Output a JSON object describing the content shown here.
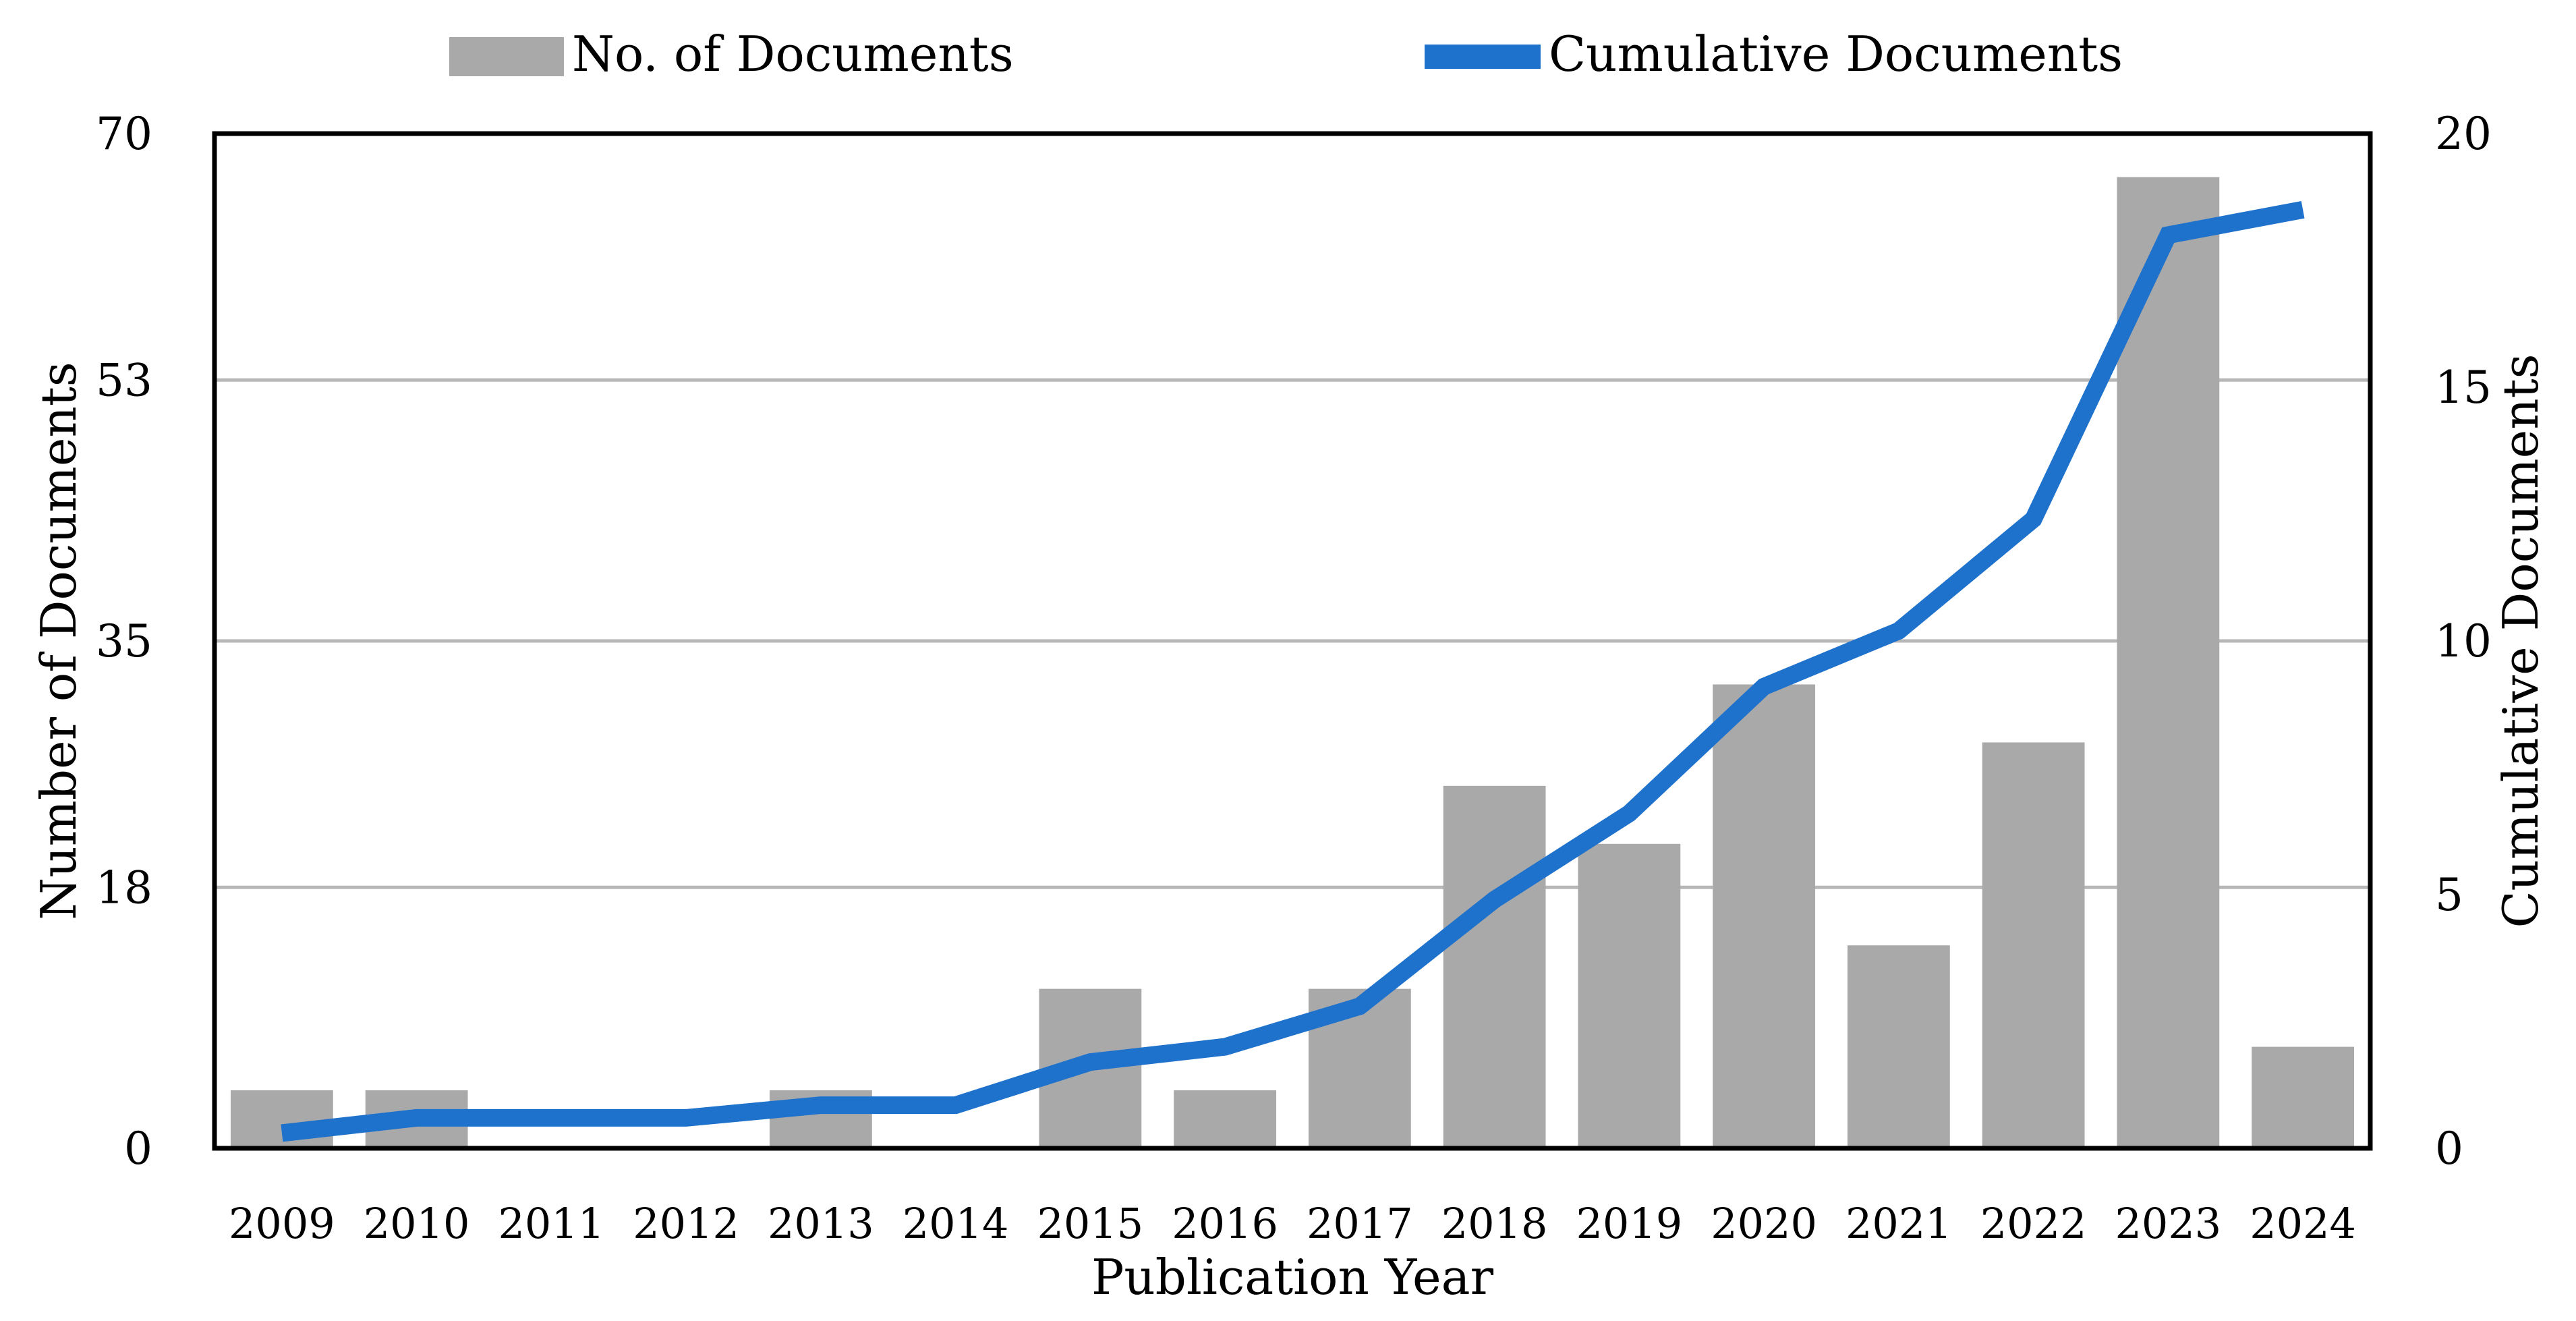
{
  "chart_data": {
    "type": "bar",
    "categories": [
      "2009",
      "2010",
      "2011",
      "2012",
      "2013",
      "2014",
      "2015",
      "2016",
      "2017",
      "2018",
      "2019",
      "2020",
      "2021",
      "2022",
      "2023",
      "2024"
    ],
    "series": [
      {
        "name": "No. of Documents",
        "type": "bar",
        "axis": "left",
        "color": "#a9a9a9",
        "values": [
          4,
          4,
          0,
          0,
          4,
          0,
          11,
          4,
          11,
          25,
          21,
          32,
          14,
          28,
          67,
          7
        ]
      },
      {
        "name": "Cumulative Documents",
        "type": "line",
        "axis": "right",
        "color": "#1f72cc",
        "values": [
          0.3,
          0.6,
          0.6,
          0.6,
          0.85,
          0.85,
          1.7,
          2.0,
          2.8,
          4.9,
          6.6,
          9.1,
          10.2,
          12.4,
          18.0,
          18.5
        ]
      }
    ],
    "legend": [
      "No. of Documents",
      "Cumulative Documents"
    ],
    "legend_position": "top",
    "xlabel": "Publication Year",
    "ylabel": "Number of Documents",
    "y2label": "Cumulative Documents",
    "ylim": [
      0,
      70
    ],
    "y2lim": [
      0,
      20
    ],
    "yticks": [
      "0",
      "18",
      "35",
      "53",
      "70"
    ],
    "y2ticks": [
      "0",
      "5",
      "10",
      "15",
      "20"
    ],
    "grid": true
  }
}
